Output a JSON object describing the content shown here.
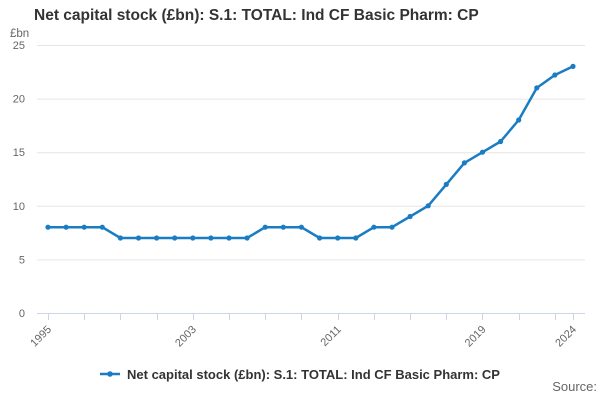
{
  "header": {
    "title": "Net capital stock (£bn): S.1: TOTAL: Ind CF Basic Pharm: CP"
  },
  "chart_data": {
    "type": "line",
    "title": "Net capital stock (£bn): S.1: TOTAL: Ind CF Basic Pharm: CP",
    "ylabel": "£bn",
    "xlabel": "",
    "x": [
      1995,
      1996,
      1997,
      1998,
      1999,
      2000,
      2001,
      2002,
      2003,
      2004,
      2005,
      2006,
      2007,
      2008,
      2009,
      2010,
      2011,
      2012,
      2013,
      2014,
      2015,
      2016,
      2017,
      2018,
      2019,
      2020,
      2021,
      2022,
      2023,
      2024
    ],
    "series": [
      {
        "name": "Net capital stock (£bn): S.1: TOTAL: Ind CF Basic Pharm: CP",
        "color": "#1a7dc4",
        "values": [
          8,
          8,
          8,
          8,
          7,
          7,
          7,
          7,
          7,
          7,
          7,
          7,
          8,
          8,
          8,
          7,
          7,
          7,
          8,
          8,
          9,
          10,
          12,
          14,
          15,
          16,
          18,
          21,
          22.2,
          23
        ]
      }
    ],
    "ylim": [
      0,
      25
    ],
    "yticks": [
      0,
      5,
      10,
      15,
      20,
      25
    ],
    "xtick_interval": 2,
    "xticks_labeled": [
      1995,
      2003,
      2011,
      2019,
      2024
    ],
    "grid": "horizontal",
    "legend_position": "bottom",
    "colors": {
      "gridline": "#e6e6e6",
      "axis": "#ccd6eb",
      "tick_label": "#666666",
      "title": "#333333"
    }
  },
  "footer": {
    "source_label": "Source:"
  }
}
